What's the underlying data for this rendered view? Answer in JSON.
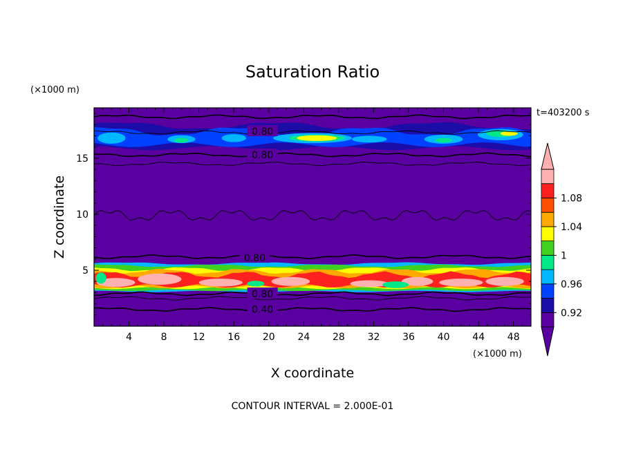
{
  "chart_data": {
    "type": "heatmap",
    "title": "Saturation Ratio",
    "xlabel": "X coordinate",
    "ylabel": "Z coordinate",
    "x_unit": "(×1000 m)",
    "y_unit": "(×1000 m)",
    "time_label": "t=403200 s",
    "footer": "CONTOUR INTERVAL = 2.000E-01",
    "xlim": [
      0,
      50
    ],
    "ylim": [
      0,
      19.5
    ],
    "x_ticks": [
      4,
      8,
      12,
      16,
      20,
      24,
      28,
      32,
      36,
      40,
      44,
      48
    ],
    "y_ticks": [
      5,
      10,
      15
    ],
    "colorbar": {
      "levels": [
        0.92,
        0.96,
        1,
        1.04,
        1.08
      ],
      "tick_labels": [
        "0.92",
        "0.96",
        "1",
        "1.04",
        "1.08"
      ],
      "colors": [
        "#5a00a0",
        "#1c0ca8",
        "#0040ff",
        "#00b8ff",
        "#00e888",
        "#40d020",
        "#ffff00",
        "#ffa800",
        "#ff5000",
        "#ff2020",
        "#ffb0b0"
      ]
    },
    "contour_labels": [
      {
        "text": "0.80",
        "x": 17.7,
        "z": 17.4
      },
      {
        "text": "0.80",
        "x": 17.7,
        "z": 15.3
      },
      {
        "text": "0.80",
        "x": 16.8,
        "z": 6.1
      },
      {
        "text": "0.80",
        "x": 17.7,
        "z": 2.9
      },
      {
        "text": "0.40",
        "x": 17.7,
        "z": 1.5
      }
    ],
    "contour_lines_z": [
      18.7,
      17.3,
      15.3,
      14.5,
      6.2,
      2.9,
      2.5,
      1.5
    ],
    "grid": false
  }
}
